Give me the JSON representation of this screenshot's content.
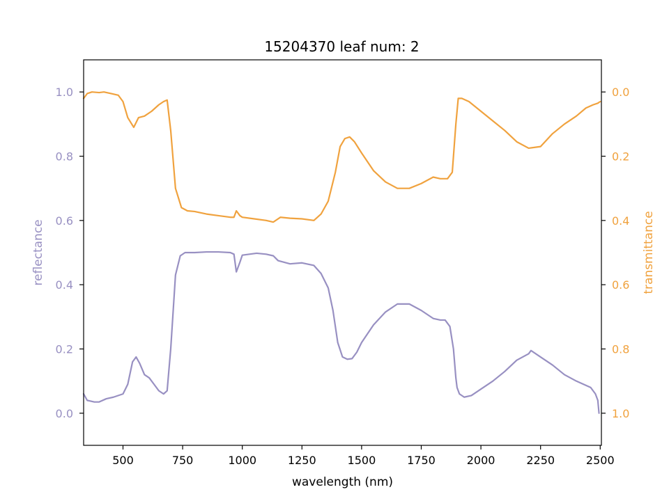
{
  "chart_data": {
    "type": "line",
    "title": "15204370 leaf num: 2",
    "xlabel": "wavelength (nm)",
    "xlim": [
      335,
      2505
    ],
    "xticks": [
      500,
      750,
      1000,
      1250,
      1500,
      1750,
      2000,
      2250,
      2500
    ],
    "grid": false,
    "legend": "none",
    "axes": {
      "left": {
        "label": "reflectance",
        "color": "#9890c2",
        "ylim": [
          -0.1,
          1.1
        ],
        "ticks": [
          0.0,
          0.2,
          0.4,
          0.6,
          0.8,
          1.0
        ],
        "tick_labels": [
          "0.0",
          "0.2",
          "0.4",
          "0.6",
          "0.8",
          "1.0"
        ]
      },
      "right": {
        "label": "transmittance",
        "color": "#f0a23e",
        "ylim": [
          1.1,
          -0.1
        ],
        "inverted": true,
        "ticks": [
          0.0,
          0.2,
          0.4,
          0.6,
          0.8,
          1.0
        ],
        "tick_labels": [
          "0.0",
          "0.2",
          "0.4",
          "0.6",
          "0.8",
          "1.0"
        ]
      }
    },
    "series": [
      {
        "axis": "left",
        "color": "#9890c2",
        "x": [
          335,
          350,
          380,
          400,
          430,
          460,
          500,
          520,
          540,
          555,
          570,
          590,
          610,
          630,
          650,
          670,
          685,
          700,
          720,
          740,
          760,
          800,
          850,
          900,
          950,
          965,
          975,
          990,
          1000,
          1030,
          1060,
          1100,
          1130,
          1150,
          1200,
          1250,
          1300,
          1330,
          1360,
          1380,
          1400,
          1420,
          1440,
          1460,
          1480,
          1500,
          1550,
          1600,
          1650,
          1700,
          1750,
          1800,
          1830,
          1850,
          1870,
          1885,
          1895,
          1900,
          1910,
          1930,
          1960,
          2000,
          2050,
          2100,
          2150,
          2200,
          2210,
          2250,
          2300,
          2350,
          2400,
          2430,
          2460,
          2480,
          2490,
          2495
        ],
        "y": [
          0.06,
          0.04,
          0.035,
          0.035,
          0.045,
          0.05,
          0.06,
          0.09,
          0.16,
          0.175,
          0.155,
          0.12,
          0.11,
          0.09,
          0.07,
          0.06,
          0.07,
          0.2,
          0.43,
          0.49,
          0.5,
          0.5,
          0.502,
          0.502,
          0.5,
          0.495,
          0.44,
          0.47,
          0.492,
          0.495,
          0.498,
          0.495,
          0.49,
          0.475,
          0.465,
          0.468,
          0.46,
          0.435,
          0.39,
          0.32,
          0.22,
          0.175,
          0.168,
          0.17,
          0.19,
          0.22,
          0.275,
          0.315,
          0.34,
          0.34,
          0.32,
          0.295,
          0.29,
          0.29,
          0.27,
          0.2,
          0.11,
          0.08,
          0.06,
          0.05,
          0.055,
          0.075,
          0.1,
          0.13,
          0.165,
          0.185,
          0.195,
          0.175,
          0.15,
          0.12,
          0.1,
          0.09,
          0.08,
          0.06,
          0.04,
          0.0
        ]
      },
      {
        "axis": "right",
        "color": "#f0a23e",
        "x": [
          335,
          350,
          370,
          400,
          420,
          450,
          480,
          500,
          520,
          545,
          565,
          590,
          620,
          650,
          670,
          685,
          700,
          720,
          745,
          770,
          800,
          850,
          900,
          950,
          965,
          975,
          990,
          1000,
          1050,
          1100,
          1130,
          1160,
          1200,
          1250,
          1300,
          1330,
          1360,
          1390,
          1410,
          1430,
          1450,
          1470,
          1500,
          1550,
          1600,
          1650,
          1700,
          1750,
          1800,
          1830,
          1860,
          1880,
          1895,
          1905,
          1920,
          1950,
          2000,
          2050,
          2100,
          2150,
          2200,
          2250,
          2300,
          2350,
          2400,
          2440,
          2470,
          2490,
          2500
        ],
        "y": [
          0.02,
          0.005,
          0.0,
          0.002,
          0.0,
          0.005,
          0.01,
          0.03,
          0.08,
          0.11,
          0.08,
          0.075,
          0.06,
          0.04,
          0.03,
          0.025,
          0.12,
          0.3,
          0.36,
          0.37,
          0.372,
          0.38,
          0.385,
          0.39,
          0.39,
          0.37,
          0.385,
          0.39,
          0.395,
          0.4,
          0.405,
          0.39,
          0.393,
          0.395,
          0.4,
          0.38,
          0.34,
          0.25,
          0.17,
          0.145,
          0.14,
          0.155,
          0.19,
          0.245,
          0.28,
          0.3,
          0.3,
          0.285,
          0.265,
          0.27,
          0.27,
          0.25,
          0.1,
          0.02,
          0.02,
          0.03,
          0.06,
          0.09,
          0.12,
          0.155,
          0.175,
          0.17,
          0.13,
          0.1,
          0.075,
          0.05,
          0.04,
          0.035,
          0.03
        ]
      }
    ]
  }
}
